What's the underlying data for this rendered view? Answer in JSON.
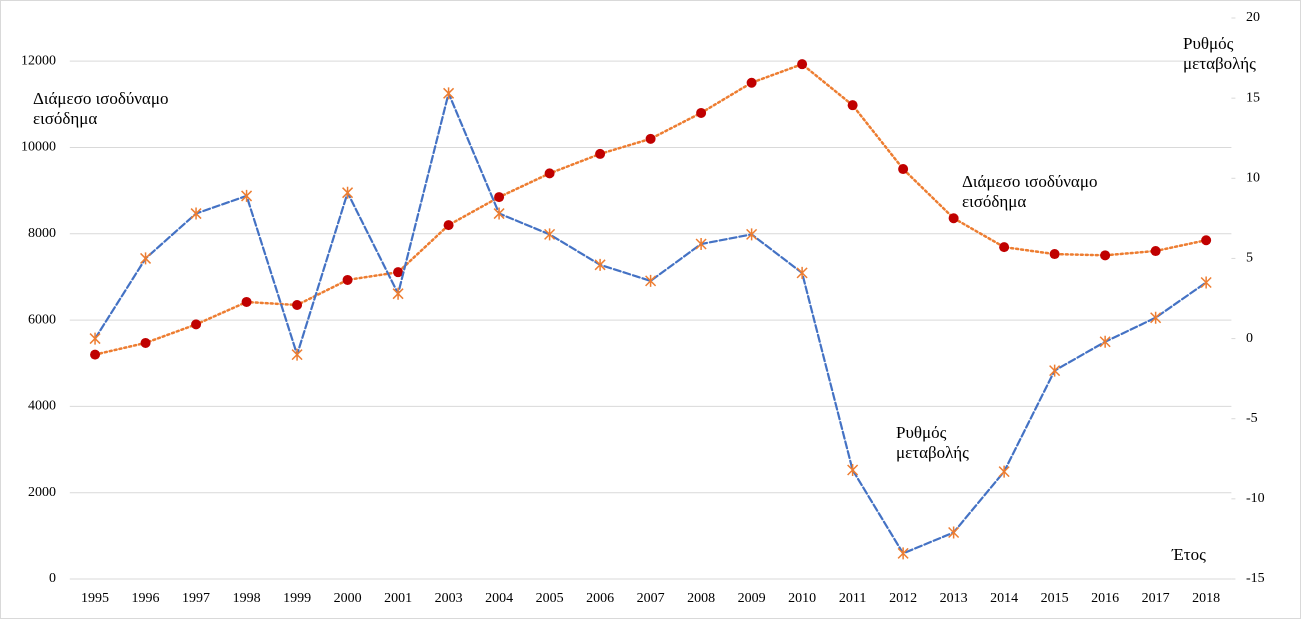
{
  "chart_data": {
    "type": "line",
    "categories": [
      "1995",
      "1996",
      "1997",
      "1998",
      "1999",
      "2000",
      "2001",
      "2003",
      "2004",
      "2005",
      "2006",
      "2007",
      "2008",
      "2009",
      "2010",
      "2011",
      "2012",
      "2013",
      "2014",
      "2015",
      "2016",
      "2017",
      "2018"
    ],
    "series": [
      {
        "color": "#ed7d31",
        "marker_color": "#c00000",
        "marker": "circle",
        "dash": "dot",
        "values": [
          5200,
          5470,
          5900,
          6420,
          6350,
          6930,
          7110,
          8200,
          8850,
          9400,
          9850,
          10200,
          10800,
          11500,
          11930,
          10980,
          9500,
          8360,
          7690,
          7530,
          7500,
          7600,
          7850
        ]
      },
      {
        "axis": "y2",
        "color": "#4472c4",
        "marker_color": "#ed7d31",
        "marker": "x",
        "dash": "dash",
        "values": [
          0.0,
          5.0,
          7.8,
          8.9,
          -1.0,
          9.1,
          2.8,
          15.3,
          7.8,
          6.5,
          4.6,
          3.6,
          5.9,
          6.5,
          4.1,
          -8.2,
          -13.4,
          -12.1,
          -8.3,
          -2.0,
          -0.2,
          1.3,
          3.5
        ]
      }
    ],
    "ylim": [
      0,
      13000
    ],
    "yticks": [
      0,
      2000,
      4000,
      6000,
      8000,
      10000,
      12000
    ],
    "y2lim": [
      -15,
      20
    ],
    "y2ticks": [
      -15,
      -10,
      -5,
      0,
      5,
      10,
      15,
      20
    ],
    "grid": true,
    "annotations": [
      {
        "lines": [
          "Διάμεσο ισοδύναμο",
          "εισόδημα"
        ]
      },
      {
        "lines": [
          "Ρυθμός",
          "μεταβολής"
        ]
      },
      {
        "lines": [
          "Διάμεσο ισοδύναμο",
          "εισόδημα"
        ]
      },
      {
        "lines": [
          "Ρυθμός",
          "μεταβολής"
        ]
      },
      {
        "lines": [
          "Έτος"
        ]
      }
    ]
  }
}
